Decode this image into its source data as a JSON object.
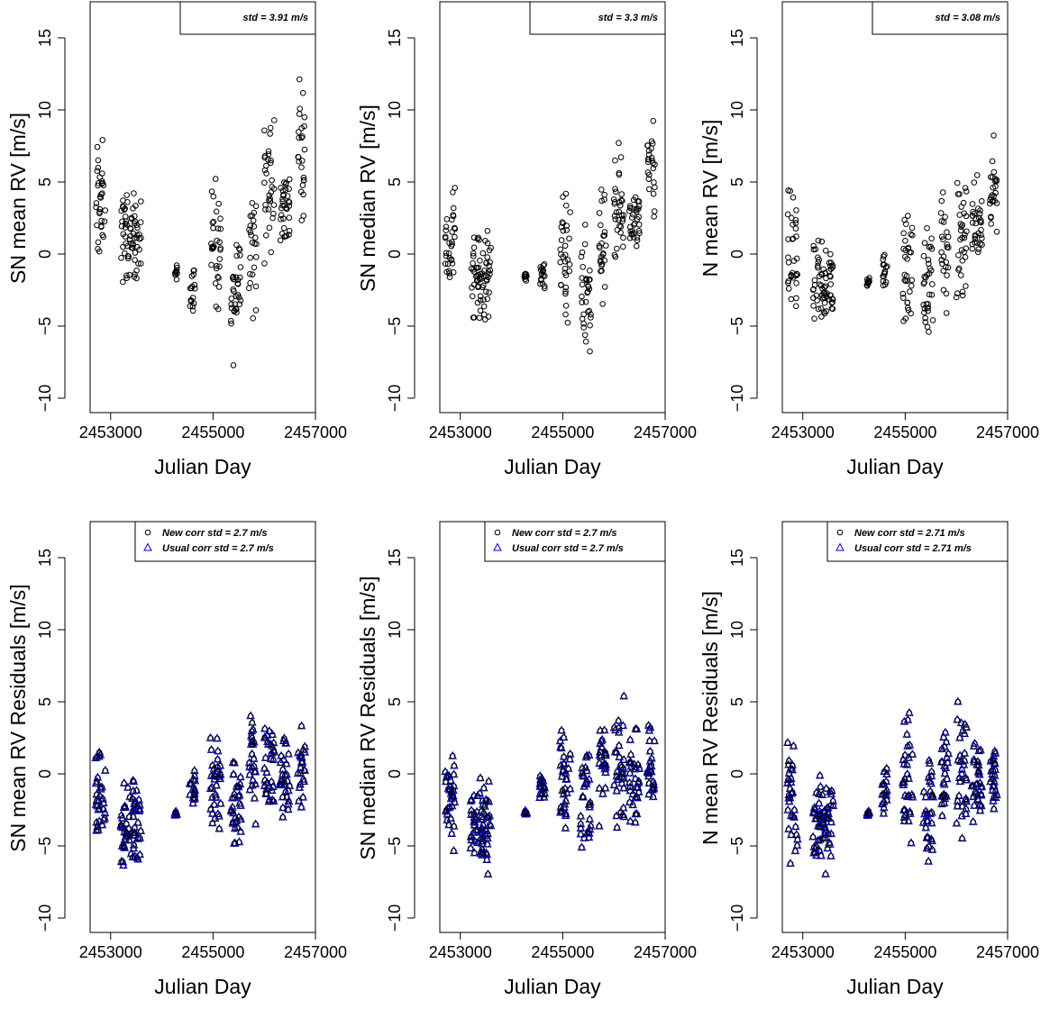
{
  "chart_data": [
    {
      "type": "scatter",
      "xlabel": "Julian Day",
      "ylabel": "SN mean RV [m/s]",
      "xlim": [
        2452600,
        2457000
      ],
      "ylim": [
        -11,
        17.5
      ],
      "xticks": [
        2453000,
        2455000,
        2457000
      ],
      "yticks": [
        -10,
        -5,
        0,
        5,
        10,
        15
      ],
      "legend_position": "top-right",
      "legend": [
        {
          "text": "std = 3.91 m/s",
          "marker": "none"
        }
      ],
      "clusters": [
        {
          "x": [
            2452700,
            2452900
          ],
          "y": [
            -3,
            9.5
          ]
        },
        {
          "x": [
            2453200,
            2453600
          ],
          "y": [
            -3,
            5.5
          ]
        },
        {
          "x": [
            2454250,
            2454300
          ],
          "y": [
            -2,
            -0.5
          ]
        },
        {
          "x": [
            2454550,
            2454650
          ],
          "y": [
            -5.5,
            1
          ]
        },
        {
          "x": [
            2454950,
            2455150
          ],
          "y": [
            -6.5,
            6.5
          ]
        },
        {
          "x": [
            2455350,
            2455550
          ],
          "y": [
            -9,
            4
          ]
        },
        {
          "x": [
            2455700,
            2455850
          ],
          "y": [
            -5.5,
            7.5
          ]
        },
        {
          "x": [
            2456000,
            2456200
          ],
          "y": [
            -3,
            12
          ]
        },
        {
          "x": [
            2456300,
            2456500
          ],
          "y": [
            -0.5,
            7
          ]
        },
        {
          "x": [
            2456650,
            2456800
          ],
          "y": [
            1.5,
            13.5
          ]
        }
      ]
    },
    {
      "type": "scatter",
      "xlabel": "Julian Day",
      "ylabel": "SN median RV [m/s]",
      "xlim": [
        2452600,
        2457000
      ],
      "ylim": [
        -11,
        17.5
      ],
      "xticks": [
        2453000,
        2455000,
        2457000
      ],
      "yticks": [
        -10,
        -5,
        0,
        5,
        10,
        15
      ],
      "legend_position": "top-right",
      "legend": [
        {
          "text": "std = 3.3 m/s",
          "marker": "none"
        }
      ],
      "clusters": [
        {
          "x": [
            2452700,
            2452900
          ],
          "y": [
            -4,
            6.5
          ]
        },
        {
          "x": [
            2453200,
            2453600
          ],
          "y": [
            -5.5,
            2.5
          ]
        },
        {
          "x": [
            2454250,
            2454300
          ],
          "y": [
            -2,
            -1
          ]
        },
        {
          "x": [
            2454550,
            2454650
          ],
          "y": [
            -3.5,
            0.5
          ]
        },
        {
          "x": [
            2454950,
            2455150
          ],
          "y": [
            -6.5,
            5.5
          ]
        },
        {
          "x": [
            2455350,
            2455550
          ],
          "y": [
            -8.5,
            4
          ]
        },
        {
          "x": [
            2455700,
            2455850
          ],
          "y": [
            -5,
            6
          ]
        },
        {
          "x": [
            2456000,
            2456200
          ],
          "y": [
            -3,
            8.5
          ]
        },
        {
          "x": [
            2456300,
            2456500
          ],
          "y": [
            -0.5,
            5
          ]
        },
        {
          "x": [
            2456650,
            2456800
          ],
          "y": [
            0,
            10.5
          ]
        }
      ]
    },
    {
      "type": "scatter",
      "xlabel": "Julian Day",
      "ylabel": "N mean RV [m/s]",
      "xlim": [
        2452600,
        2457000
      ],
      "ylim": [
        -11,
        17.5
      ],
      "xticks": [
        2453000,
        2455000,
        2457000
      ],
      "yticks": [
        -10,
        -5,
        0,
        5,
        10,
        15
      ],
      "legend_position": "top-right",
      "legend": [
        {
          "text": "std = 3.08 m/s",
          "marker": "none"
        }
      ],
      "clusters": [
        {
          "x": [
            2452700,
            2452900
          ],
          "y": [
            -6.5,
            6
          ]
        },
        {
          "x": [
            2453200,
            2453600
          ],
          "y": [
            -7,
            2.5
          ]
        },
        {
          "x": [
            2454250,
            2454300
          ],
          "y": [
            -2.5,
            -1.5
          ]
        },
        {
          "x": [
            2454550,
            2454650
          ],
          "y": [
            -3.5,
            1
          ]
        },
        {
          "x": [
            2454950,
            2455150
          ],
          "y": [
            -7,
            5.5
          ]
        },
        {
          "x": [
            2455350,
            2455550
          ],
          "y": [
            -8.5,
            4
          ]
        },
        {
          "x": [
            2455700,
            2455850
          ],
          "y": [
            -6,
            6
          ]
        },
        {
          "x": [
            2456000,
            2456200
          ],
          "y": [
            -6,
            8
          ]
        },
        {
          "x": [
            2456300,
            2456500
          ],
          "y": [
            -2,
            6
          ]
        },
        {
          "x": [
            2456650,
            2456800
          ],
          "y": [
            -1,
            9
          ]
        }
      ]
    },
    {
      "type": "scatter",
      "xlabel": "Julian Day",
      "ylabel": "SN mean RV Residuals [m/s]",
      "xlim": [
        2452600,
        2457000
      ],
      "ylim": [
        -11,
        17.5
      ],
      "xticks": [
        2453000,
        2455000,
        2457000
      ],
      "yticks": [
        -10,
        -5,
        0,
        5,
        10,
        15
      ],
      "legend_position": "top-right",
      "legend": [
        {
          "text": "New corr std = 2.7 m/s",
          "marker": "circle"
        },
        {
          "text": "Usual corr std = 2.7 m/s",
          "marker": "triangle"
        }
      ],
      "clusters": [
        {
          "x": [
            2452700,
            2452900
          ],
          "y": [
            -6.5,
            4
          ]
        },
        {
          "x": [
            2453200,
            2453600
          ],
          "y": [
            -7.5,
            0.5
          ]
        },
        {
          "x": [
            2454250,
            2454300
          ],
          "y": [
            -3,
            -2.5
          ]
        },
        {
          "x": [
            2454550,
            2454650
          ],
          "y": [
            -3,
            1
          ]
        },
        {
          "x": [
            2454950,
            2455150
          ],
          "y": [
            -6,
            6
          ]
        },
        {
          "x": [
            2455350,
            2455550
          ],
          "y": [
            -7.5,
            4
          ]
        },
        {
          "x": [
            2455700,
            2455850
          ],
          "y": [
            -5,
            5.5
          ]
        },
        {
          "x": [
            2456000,
            2456200
          ],
          "y": [
            -5.5,
            6.5
          ]
        },
        {
          "x": [
            2456300,
            2456500
          ],
          "y": [
            -4.5,
            4
          ]
        },
        {
          "x": [
            2456650,
            2456800
          ],
          "y": [
            -4.5,
            4.5
          ]
        }
      ]
    },
    {
      "type": "scatter",
      "xlabel": "Julian Day",
      "ylabel": "SN median RV Residuals [m/s]",
      "xlim": [
        2452600,
        2457000
      ],
      "ylim": [
        -11,
        17.5
      ],
      "xticks": [
        2453000,
        2455000,
        2457000
      ],
      "yticks": [
        -10,
        -5,
        0,
        5,
        10,
        15
      ],
      "legend_position": "top-right",
      "legend": [
        {
          "text": "New corr std = 2.7 m/s",
          "marker": "circle"
        },
        {
          "text": "Usual corr std = 2.7 m/s",
          "marker": "triangle"
        }
      ],
      "clusters": [
        {
          "x": [
            2452700,
            2452900
          ],
          "y": [
            -6.5,
            4
          ]
        },
        {
          "x": [
            2453200,
            2453600
          ],
          "y": [
            -7.5,
            0.5
          ]
        },
        {
          "x": [
            2454250,
            2454300
          ],
          "y": [
            -3,
            -2.5
          ]
        },
        {
          "x": [
            2454550,
            2454650
          ],
          "y": [
            -3,
            1
          ]
        },
        {
          "x": [
            2454950,
            2455150
          ],
          "y": [
            -6,
            6
          ]
        },
        {
          "x": [
            2455350,
            2455550
          ],
          "y": [
            -7.5,
            4
          ]
        },
        {
          "x": [
            2455700,
            2455850
          ],
          "y": [
            -5,
            5.5
          ]
        },
        {
          "x": [
            2456000,
            2456200
          ],
          "y": [
            -5.5,
            6.5
          ]
        },
        {
          "x": [
            2456300,
            2456500
          ],
          "y": [
            -4.5,
            4
          ]
        },
        {
          "x": [
            2456650,
            2456800
          ],
          "y": [
            -4.5,
            4.5
          ]
        }
      ]
    },
    {
      "type": "scatter",
      "xlabel": "Julian Day",
      "ylabel": "N mean RV Residuals [m/s]",
      "xlim": [
        2452600,
        2457000
      ],
      "ylim": [
        -11,
        17.5
      ],
      "xticks": [
        2453000,
        2455000,
        2457000
      ],
      "yticks": [
        -10,
        -5,
        0,
        5,
        10,
        15
      ],
      "legend_position": "top-right",
      "legend": [
        {
          "text": "New corr std = 2.71 m/s",
          "marker": "circle"
        },
        {
          "text": "Usual corr std = 2.71 m/s",
          "marker": "triangle"
        }
      ],
      "clusters": [
        {
          "x": [
            2452700,
            2452900
          ],
          "y": [
            -8,
            4.5
          ]
        },
        {
          "x": [
            2453200,
            2453600
          ],
          "y": [
            -7.5,
            1
          ]
        },
        {
          "x": [
            2454250,
            2454300
          ],
          "y": [
            -3,
            -2.5
          ]
        },
        {
          "x": [
            2454550,
            2454650
          ],
          "y": [
            -3.5,
            1.5
          ]
        },
        {
          "x": [
            2454950,
            2455150
          ],
          "y": [
            -6.5,
            6
          ]
        },
        {
          "x": [
            2455350,
            2455550
          ],
          "y": [
            -8,
            4
          ]
        },
        {
          "x": [
            2455700,
            2455850
          ],
          "y": [
            -5.5,
            5.5
          ]
        },
        {
          "x": [
            2456000,
            2456200
          ],
          "y": [
            -6,
            7
          ]
        },
        {
          "x": [
            2456300,
            2456500
          ],
          "y": [
            -4.5,
            3.5
          ]
        },
        {
          "x": [
            2456650,
            2456800
          ],
          "y": [
            -5,
            4.5
          ]
        }
      ]
    }
  ],
  "colors": {
    "circle_marker": "#000000",
    "triangle_marker": "#0000cc",
    "axes": "#000000"
  }
}
